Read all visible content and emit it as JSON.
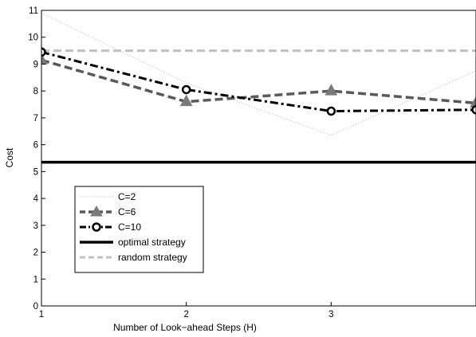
{
  "chart_data": {
    "type": "line",
    "title": "",
    "xlabel": "Number of Look−ahead Steps (H)",
    "ylabel": "Cost",
    "xlim": [
      1,
      4
    ],
    "ylim": [
      0,
      11
    ],
    "x_ticks": [
      "1",
      "2",
      "3"
    ],
    "y_ticks": [
      "0",
      "1",
      "2",
      "3",
      "4",
      "5",
      "6",
      "7",
      "8",
      "9",
      "10",
      "11"
    ],
    "grid": false,
    "legend_position": "lower-left",
    "series": [
      {
        "name": "C=2",
        "x": [
          1,
          2,
          3,
          4
        ],
        "y": [
          10.9,
          8.3,
          6.35,
          8.75
        ],
        "color": "#bdbdbd",
        "style": "dotted",
        "marker": "none"
      },
      {
        "name": "C=6",
        "x": [
          1,
          2,
          3,
          4
        ],
        "y": [
          9.15,
          7.6,
          8.0,
          7.55
        ],
        "color": "#5a5a5a",
        "style": "dashed",
        "marker": "triangle"
      },
      {
        "name": "C=10",
        "x": [
          1,
          2,
          3,
          4
        ],
        "y": [
          9.45,
          8.05,
          7.25,
          7.3
        ],
        "color": "#000000",
        "style": "dashdot",
        "marker": "circle"
      },
      {
        "name": "optimal strategy",
        "x": [
          1,
          4
        ],
        "y": [
          5.35,
          5.35
        ],
        "color": "#000000",
        "style": "solid",
        "marker": "none"
      },
      {
        "name": "random strategy",
        "x": [
          1,
          4
        ],
        "y": [
          9.5,
          9.5
        ],
        "color": "#c0c0c0",
        "style": "dashed",
        "marker": "none"
      }
    ]
  }
}
